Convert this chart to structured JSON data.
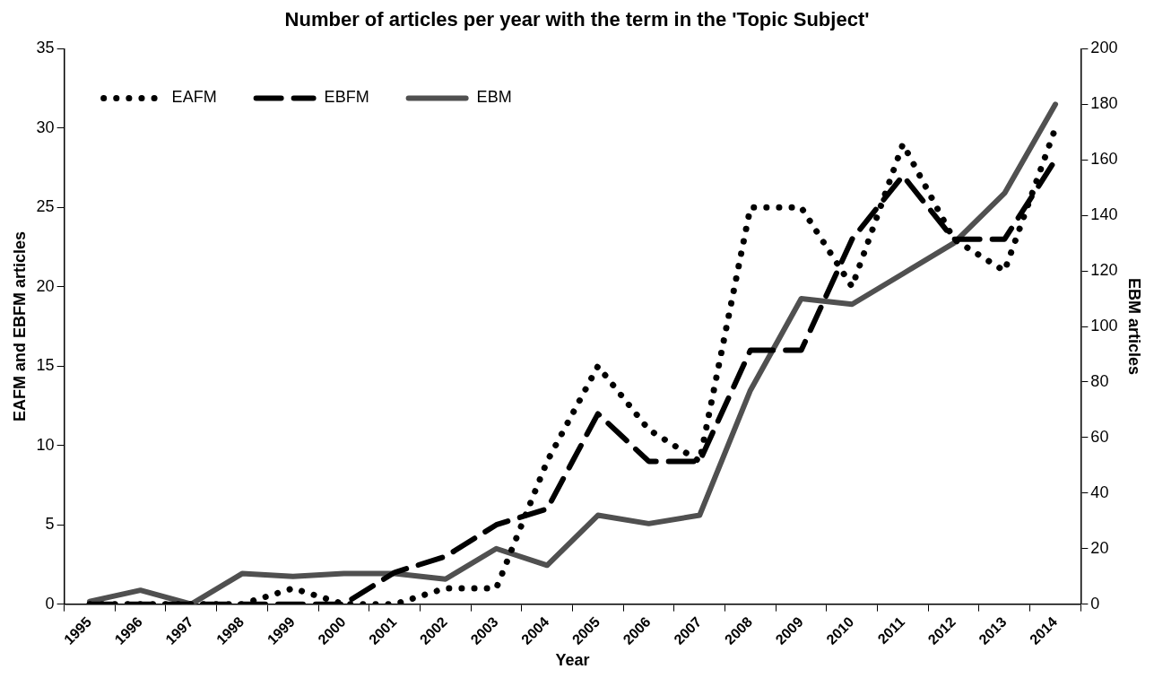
{
  "chart_data": {
    "type": "line",
    "title": "Number of articles per year with the term in the 'Topic Subject'",
    "xlabel": "Year",
    "ylabel": "EAFM and EBFM articles",
    "y2label": "EBM articles",
    "categories": [
      "1995",
      "1996",
      "1997",
      "1998",
      "1999",
      "2000",
      "2001",
      "2002",
      "2003",
      "2004",
      "2005",
      "2006",
      "2007",
      "2008",
      "2009",
      "2010",
      "2011",
      "2012",
      "2013",
      "2014"
    ],
    "series": [
      {
        "name": "EAFM",
        "color": "#000000",
        "line_style": "dotted",
        "values": [
          0,
          0,
          0,
          0,
          1,
          0,
          0,
          1,
          1,
          9,
          15,
          11,
          9,
          25,
          25,
          20,
          29,
          23,
          21,
          30
        ]
      },
      {
        "name": "EBFM",
        "color": "#000000",
        "line_style": "dashed",
        "values": [
          0,
          0,
          0,
          0,
          0,
          0,
          2,
          3,
          5,
          6,
          12,
          9,
          9,
          16,
          16,
          23,
          27,
          23,
          23,
          28
        ]
      },
      {
        "name": "EBM",
        "color": "#505050",
        "line_style": "solid",
        "axis": "y2",
        "values": [
          1,
          5,
          0,
          11,
          10,
          11,
          11,
          9,
          20,
          14,
          32,
          29,
          32,
          77,
          110,
          108,
          119,
          130,
          148,
          180
        ]
      }
    ],
    "ylim": [
      0,
      35
    ],
    "yticks": [
      0,
      5,
      10,
      15,
      20,
      25,
      30,
      35
    ],
    "y2lim": [
      0,
      200
    ],
    "y2ticks": [
      0,
      20,
      40,
      60,
      80,
      100,
      120,
      140,
      160,
      180,
      200
    ],
    "grid": false,
    "legend": "top left",
    "marker": "none"
  }
}
